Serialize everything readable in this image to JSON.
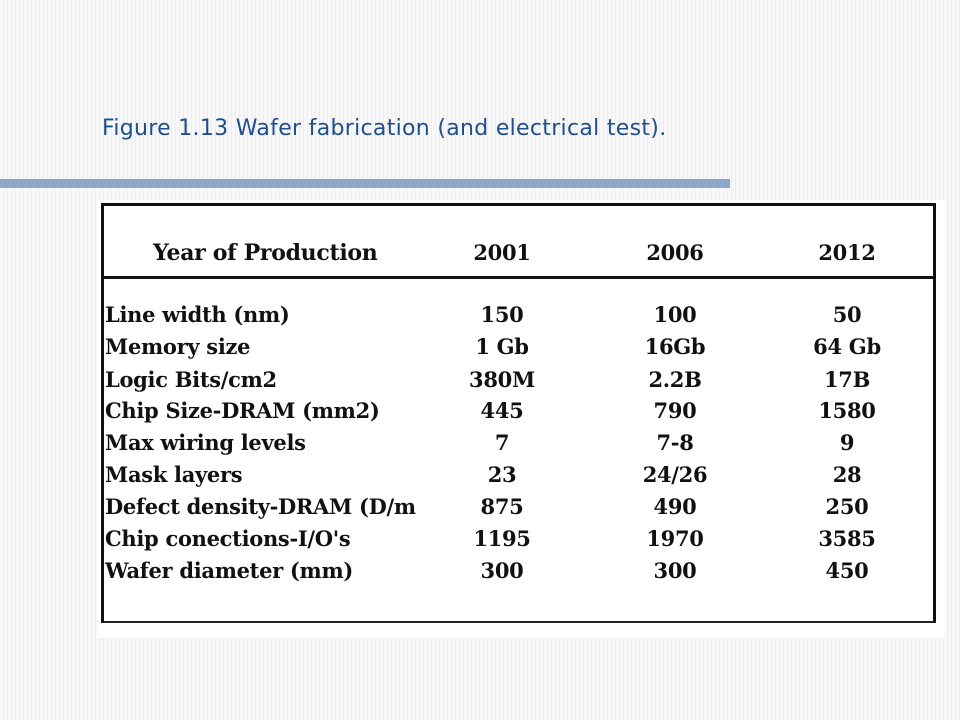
{
  "slide": {
    "title": "Figure 1.13 Wafer fabrication (and electrical test)."
  },
  "table": {
    "headers": [
      "Year of Production",
      "2001",
      "2006",
      "2012"
    ],
    "rows": [
      {
        "label": "Line width (nm)",
        "values": [
          "150",
          "100",
          "50"
        ]
      },
      {
        "label": "Memory size",
        "values": [
          "1 Gb",
          "16Gb",
          "64 Gb"
        ]
      },
      {
        "label": "Logic Bits/cm2",
        "values": [
          "380M",
          "2.2B",
          "17B"
        ]
      },
      {
        "label": "Chip Size-DRAM (mm2)",
        "values": [
          "445",
          "790",
          "1580"
        ]
      },
      {
        "label": "Max wiring levels",
        "values": [
          "7",
          "7-8",
          "9"
        ]
      },
      {
        "label": "Mask layers",
        "values": [
          "23",
          "24/26",
          "28"
        ]
      },
      {
        "label": "Defect density-DRAM (D/m",
        "values": [
          "875",
          "490",
          "250"
        ]
      },
      {
        "label": "Chip conections-I/O's",
        "values": [
          "1195",
          "1970",
          "3585"
        ]
      },
      {
        "label": "Wafer diameter (mm)",
        "values": [
          "300",
          "300",
          "450"
        ]
      }
    ]
  }
}
